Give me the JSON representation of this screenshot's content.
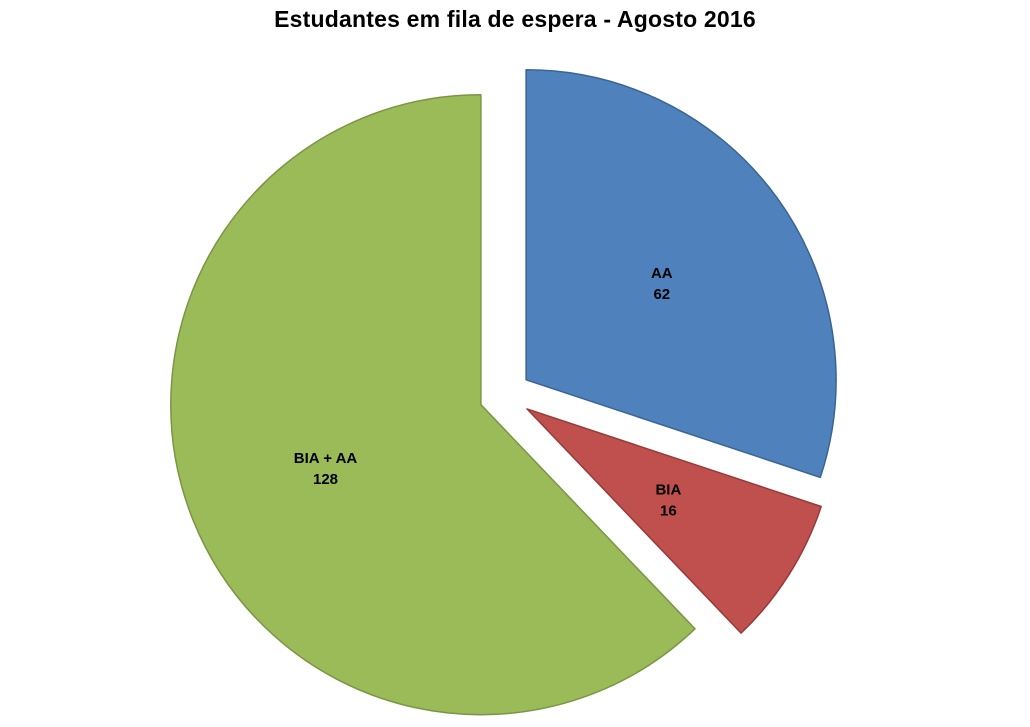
{
  "page": {
    "background_color": "#ffffff"
  },
  "chart_data": {
    "type": "pie",
    "title": "Estudantes em fila de espera -  Agosto 2016",
    "start_angle_deg": 0,
    "direction": "clockwise",
    "exploded": true,
    "legend": "none",
    "labels_position": "inside",
    "slices": [
      {
        "id": "aa",
        "label": "AA",
        "value": 62,
        "color": "#4F81BD",
        "stroke": "#3C6493"
      },
      {
        "id": "bia",
        "label": "BIA",
        "value": 16,
        "color": "#C0504D",
        "stroke": "#953B39"
      },
      {
        "id": "bia-aa",
        "label": "BIA + AA",
        "value": 128,
        "color": "#9BBB59",
        "stroke": "#7A9644"
      }
    ]
  }
}
